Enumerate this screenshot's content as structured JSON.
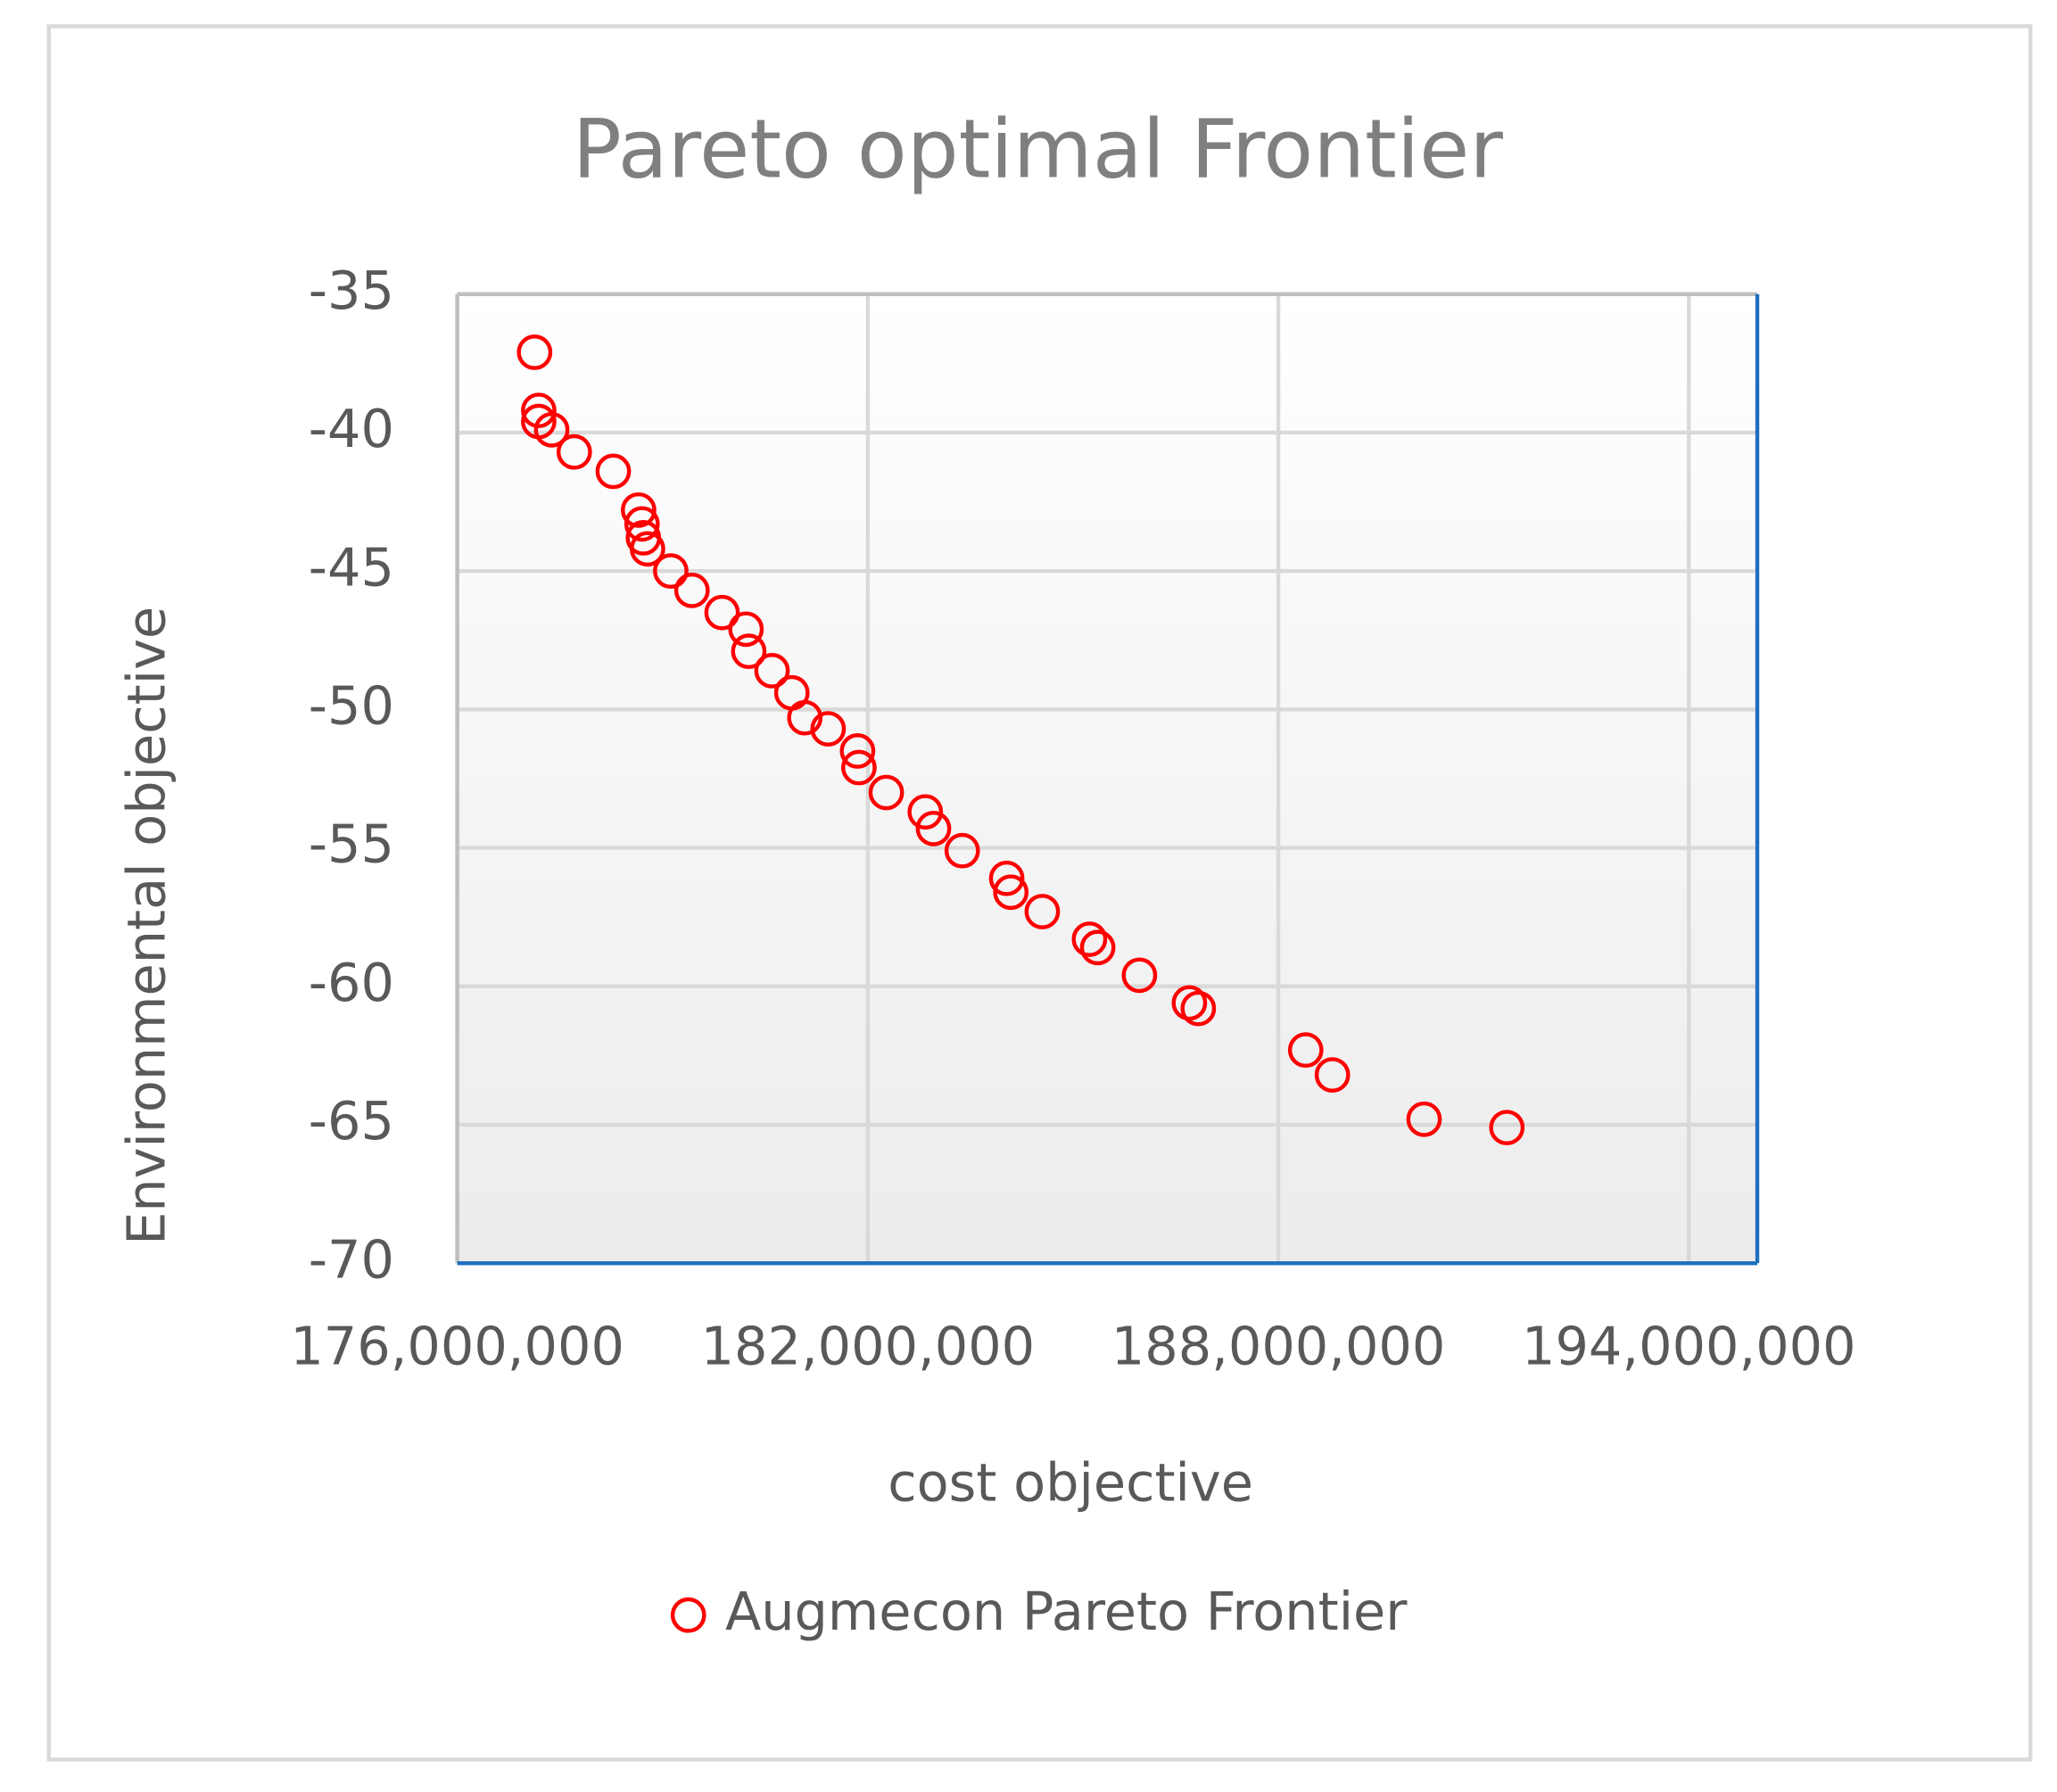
{
  "chart_data": {
    "type": "scatter",
    "title": "Pareto optimal Frontier",
    "x_label": "cost objective",
    "y_label": "Environmental objective",
    "series": [
      {
        "name": "Augmecon Pareto Frontier",
        "color": "#ff0000",
        "x": [
          177130000,
          177190000,
          177190000,
          177380000,
          177710000,
          178280000,
          178650000,
          178700000,
          178720000,
          178780000,
          179120000,
          179430000,
          179870000,
          180220000,
          180260000,
          180600000,
          180890000,
          181080000,
          181420000,
          181850000,
          181870000,
          182270000,
          182840000,
          182960000,
          183380000,
          184030000,
          184090000,
          184550000,
          185240000,
          185360000,
          185970000,
          186700000,
          186830000,
          188400000,
          188790000,
          190130000,
          191340000
        ],
        "values": [
          -37.1,
          -39.2,
          -39.6,
          -39.9,
          -40.7,
          -41.4,
          -42.8,
          -43.3,
          -43.8,
          -44.2,
          -45.0,
          -45.7,
          -46.5,
          -47.1,
          -47.9,
          -48.6,
          -49.4,
          -50.3,
          -50.7,
          -51.5,
          -52.1,
          -53.0,
          -53.7,
          -54.3,
          -55.1,
          -56.1,
          -56.6,
          -57.3,
          -58.3,
          -58.6,
          -59.6,
          -60.6,
          -60.8,
          -62.3,
          -63.2,
          -64.8,
          -65.1
        ]
      }
    ],
    "xlim": [
      176000000,
      195000000
    ],
    "xticks": [
      {
        "value": 176000000,
        "label": "176,000,000"
      },
      {
        "value": 182000000,
        "label": "182,000,000"
      },
      {
        "value": 188000000,
        "label": "188,000,000"
      },
      {
        "value": 194000000,
        "label": "194,000,000"
      }
    ],
    "ylim": [
      -70,
      -35
    ],
    "yticks": [
      -35,
      -40,
      -45,
      -50,
      -55,
      -60,
      -65,
      -70
    ],
    "grid": true,
    "legend": "bottom"
  }
}
